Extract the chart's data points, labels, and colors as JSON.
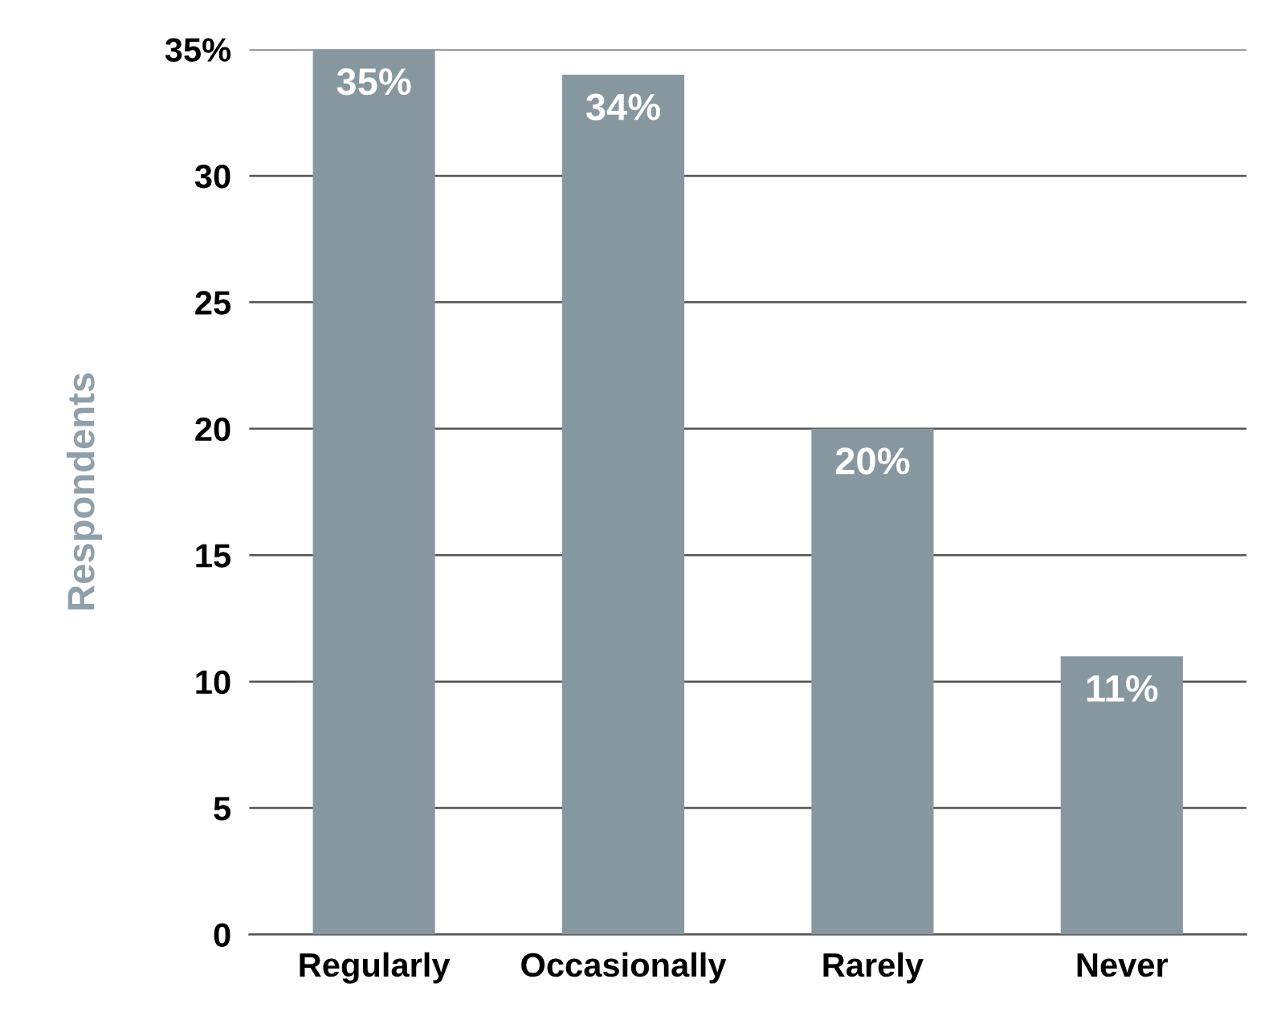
{
  "chart_data": {
    "type": "bar",
    "ylabel": "Respondents",
    "categories": [
      "Regularly",
      "Occasionally",
      "Rarely",
      "Never"
    ],
    "values": [
      35,
      34,
      20,
      11
    ],
    "value_labels": [
      "35%",
      "34%",
      "20%",
      "11%"
    ],
    "color": "#8797a0",
    "ylim": [
      0,
      35
    ],
    "yticks": [
      0,
      5,
      10,
      15,
      20,
      25,
      30,
      {
        "value": 35,
        "label": "35%"
      }
    ],
    "grid": "y",
    "legend": false
  }
}
